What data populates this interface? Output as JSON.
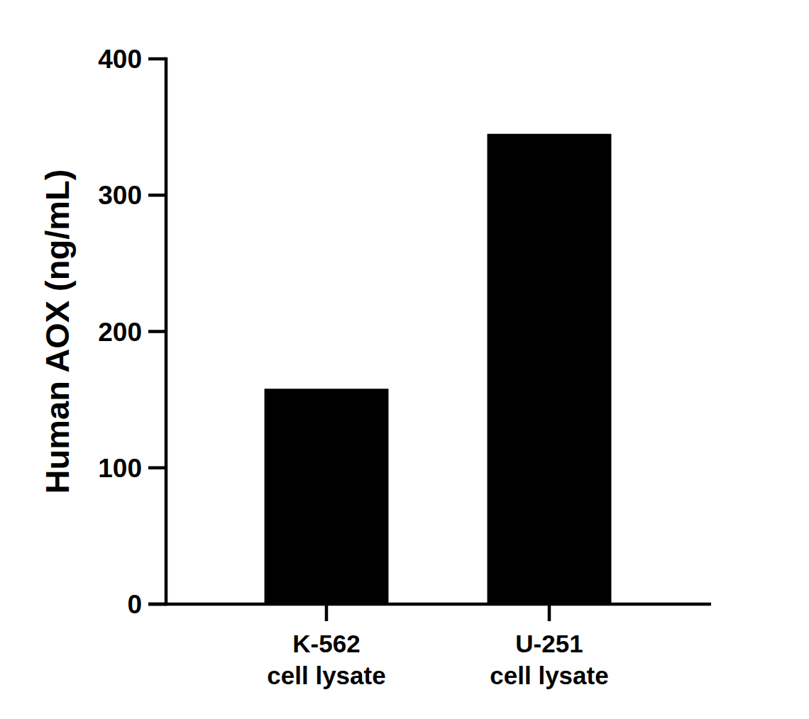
{
  "chart_data": {
    "type": "bar",
    "y_label": "Human AOX (ng/mL)",
    "categories": [
      "K-562\ncell lysate",
      "U-251\ncell lysate"
    ],
    "values": [
      158,
      345
    ],
    "color": "#000000",
    "ylim": [
      0,
      400
    ],
    "yticks": [
      0,
      100,
      200,
      300,
      400
    ],
    "grid": false
  }
}
